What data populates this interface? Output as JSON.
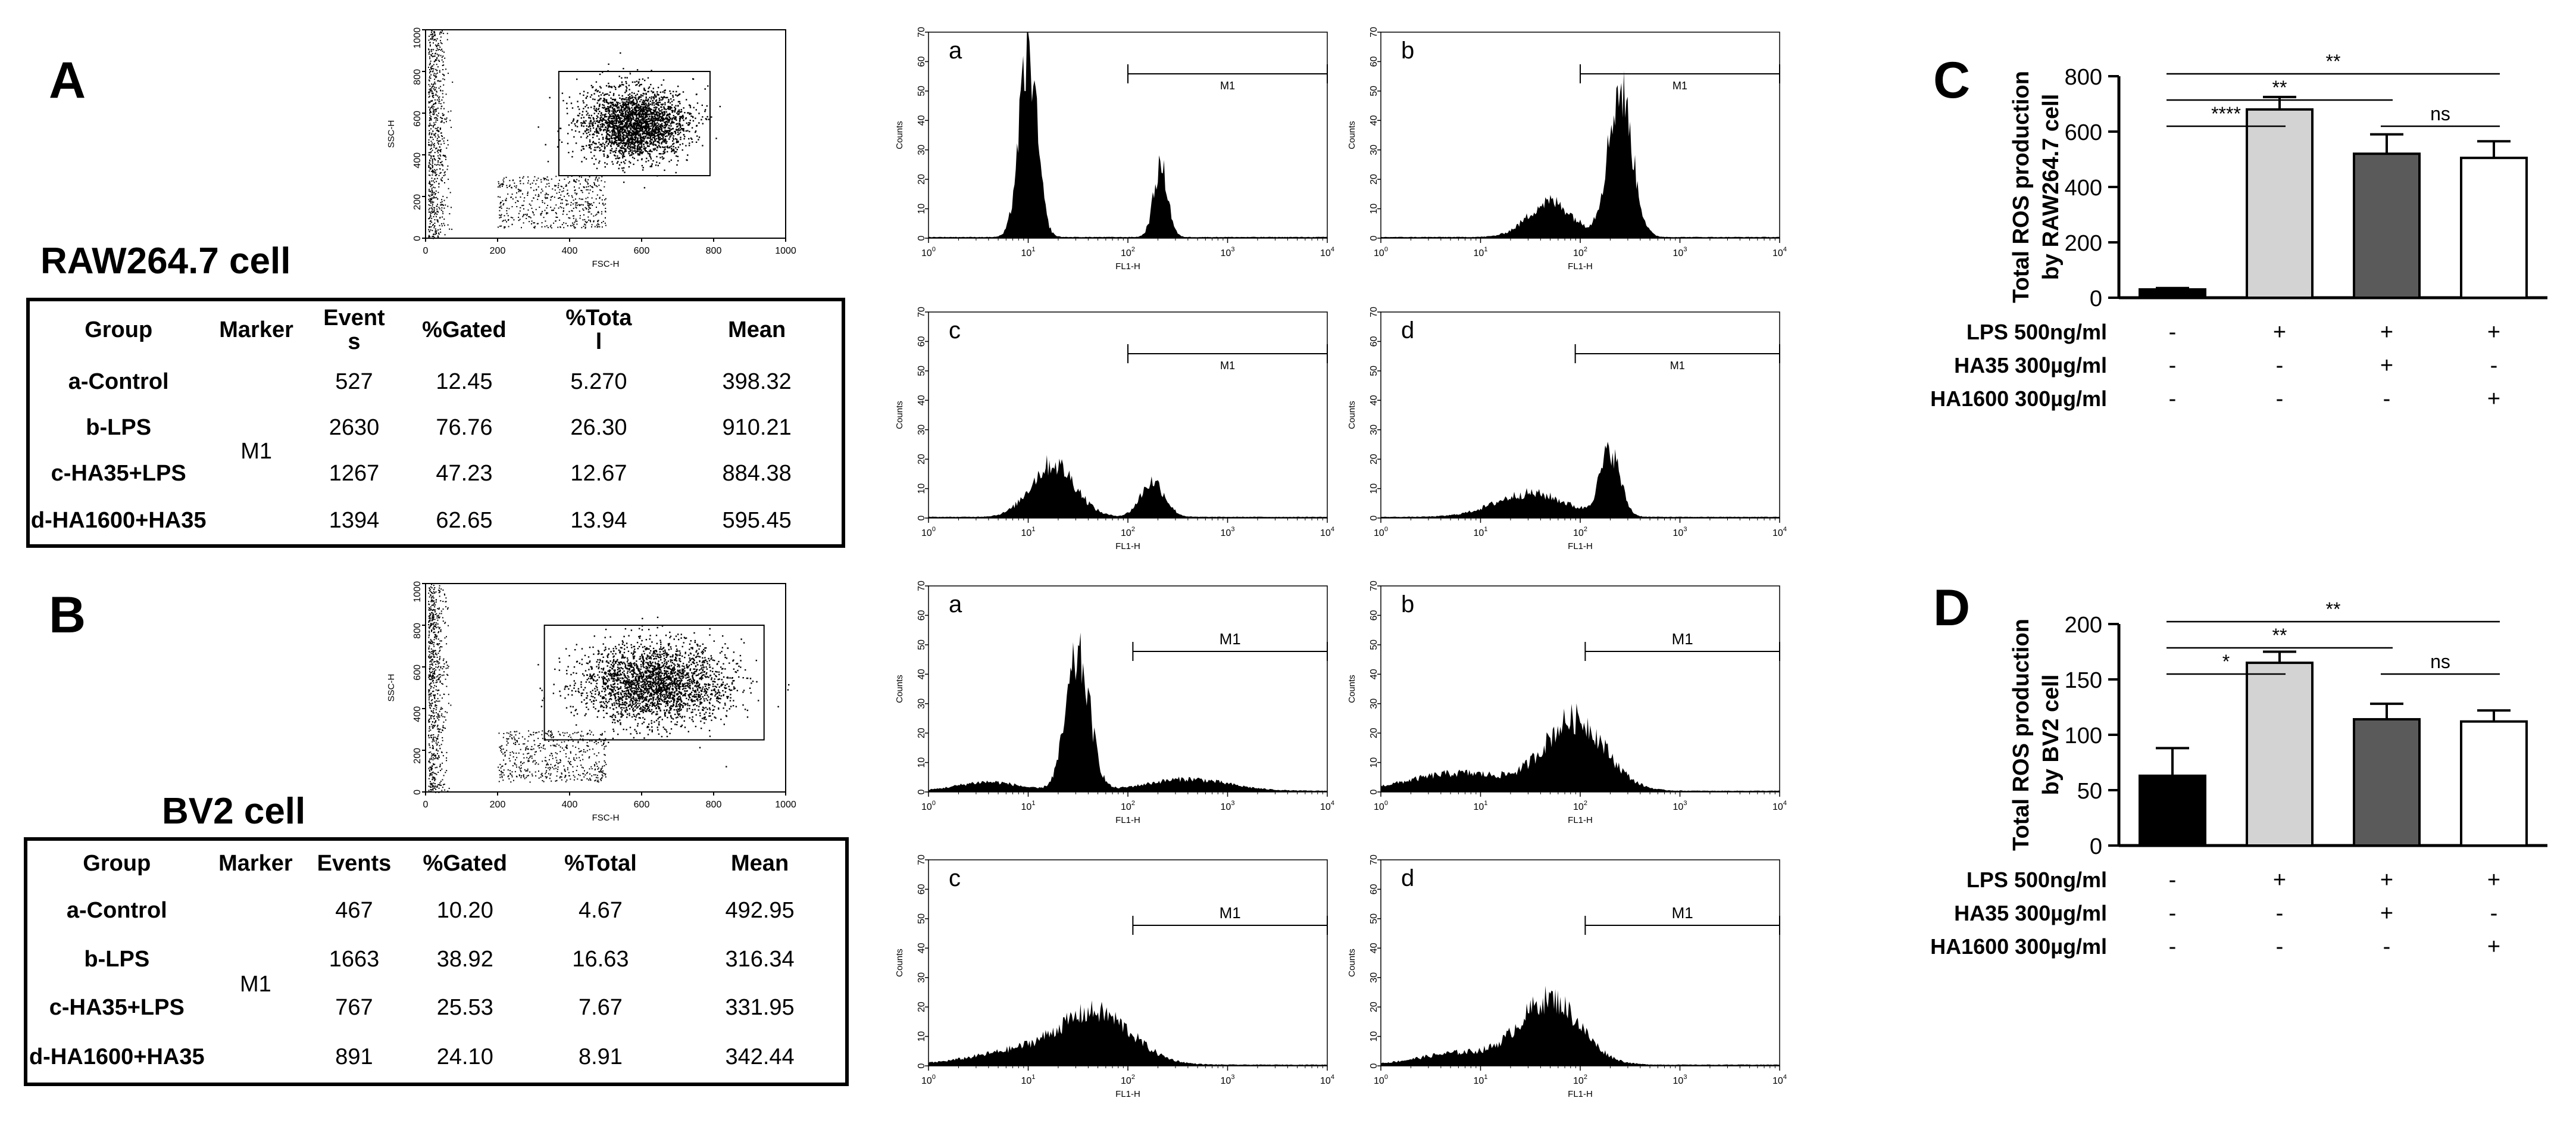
{
  "panels": {
    "A": {
      "letter": "A",
      "cell_title": "RAW264.7 cell",
      "scatter": {
        "xlabel": "FSC-H",
        "ylabel": "SSC-H",
        "xticks": [
          "0",
          "200",
          "400",
          "600",
          "800",
          "1000"
        ],
        "yticks": [
          "0",
          "200",
          "400",
          "600",
          "800",
          "1000"
        ]
      },
      "table": {
        "headers": [
          "Group",
          "Marker",
          "Events",
          "%Gated",
          "%Total",
          "Mean"
        ],
        "header_lines": [
          [
            "Group"
          ],
          [
            "Marker"
          ],
          [
            "Event",
            "s"
          ],
          [
            "%Gated"
          ],
          [
            "%Tota",
            "l"
          ],
          [
            "Mean"
          ]
        ],
        "marker": "M1",
        "rows": [
          {
            "group": "a-Control",
            "events": "527",
            "gated": "12.45",
            "total": "5.270",
            "mean": "398.32"
          },
          {
            "group": "b-LPS",
            "events": "2630",
            "gated": "76.76",
            "total": "26.30",
            "mean": "910.21"
          },
          {
            "group": "c-HA35+LPS",
            "events": "1267",
            "gated": "47.23",
            "total": "12.67",
            "mean": "884.38"
          },
          {
            "group": "d-HA1600+HA35",
            "events": "1394",
            "gated": "62.65",
            "total": "13.94",
            "mean": "595.45"
          }
        ]
      },
      "histograms": [
        {
          "label": "a",
          "gate": "M1"
        },
        {
          "label": "b",
          "gate": "M1"
        },
        {
          "label": "c",
          "gate": "M1"
        },
        {
          "label": "d",
          "gate": "M1"
        }
      ]
    },
    "B": {
      "letter": "B",
      "cell_title": "BV2 cell",
      "scatter": {
        "xlabel": "FSC-H",
        "ylabel": "SSC-H",
        "xticks": [
          "0",
          "200",
          "400",
          "600",
          "800",
          "1000"
        ],
        "yticks": [
          "0",
          "200",
          "400",
          "600",
          "800",
          "1000"
        ]
      },
      "table": {
        "headers": [
          "Group",
          "Marker",
          "Events",
          "%Gated",
          "%Total",
          "Mean"
        ],
        "header_lines": [
          [
            "Group"
          ],
          [
            "Marker"
          ],
          [
            "Events"
          ],
          [
            "%Gated"
          ],
          [
            "%Total"
          ],
          [
            "Mean"
          ]
        ],
        "marker": "M1",
        "rows": [
          {
            "group": "a-Control",
            "events": "467",
            "gated": "10.20",
            "total": "4.67",
            "mean": "492.95"
          },
          {
            "group": "b-LPS",
            "events": "1663",
            "gated": "38.92",
            "total": "16.63",
            "mean": "316.34"
          },
          {
            "group": "c-HA35+LPS",
            "events": "767",
            "gated": "25.53",
            "total": "7.67",
            "mean": "331.95"
          },
          {
            "group": "d-HA1600+HA35",
            "events": "891",
            "gated": "24.10",
            "total": "8.91",
            "mean": "342.44"
          }
        ]
      },
      "histograms": [
        {
          "label": "a",
          "gate": "M1"
        },
        {
          "label": "b",
          "gate": "M1"
        },
        {
          "label": "c",
          "gate": "M1"
        },
        {
          "label": "d",
          "gate": "M1"
        }
      ]
    }
  },
  "histogram_axes": {
    "xlabel": "FL1-H",
    "ylabel": "Counts",
    "xticks_base": "10",
    "xticks_exp": [
      "0",
      "1",
      "2",
      "3",
      "4"
    ],
    "yticks": [
      "0",
      "10",
      "20",
      "30",
      "40",
      "50",
      "60",
      "70"
    ]
  },
  "chart_data": [
    {
      "panel": "C",
      "type": "bar",
      "title": "",
      "ylabel_lines": [
        "Total ROS production",
        "by RAW264.7 cell"
      ],
      "ylim": [
        0,
        800
      ],
      "yticks": [
        0,
        200,
        400,
        600,
        800
      ],
      "values": [
        30,
        680,
        520,
        505
      ],
      "errors": [
        5,
        45,
        70,
        60
      ],
      "bar_colors": [
        "#000000",
        "#d3d3d3",
        "#5a5a5a",
        "#ffffff"
      ],
      "conditions": [
        {
          "label": "LPS 500ng/ml",
          "signs": [
            "-",
            "+",
            "+",
            "+"
          ]
        },
        {
          "label": "HA35 300µg/ml",
          "signs": [
            "-",
            "-",
            "+",
            "-"
          ]
        },
        {
          "label": "HA1600 300µg/ml",
          "signs": [
            "-",
            "-",
            "-",
            "+"
          ]
        }
      ],
      "significance": [
        {
          "from": 1,
          "to": 4,
          "text": "**"
        },
        {
          "from": 1,
          "to": 3,
          "text": "**"
        },
        {
          "from": 1,
          "to": 2,
          "text": "****"
        },
        {
          "from": 3,
          "to": 4,
          "text": "ns"
        }
      ]
    },
    {
      "panel": "D",
      "type": "bar",
      "title": "",
      "ylabel_lines": [
        "Total ROS production",
        "by BV2 cell"
      ],
      "ylim": [
        0,
        200
      ],
      "yticks": [
        0,
        50,
        100,
        150,
        200
      ],
      "values": [
        63,
        165,
        114,
        112
      ],
      "errors": [
        25,
        10,
        14,
        10
      ],
      "bar_colors": [
        "#000000",
        "#d3d3d3",
        "#5a5a5a",
        "#ffffff"
      ],
      "conditions": [
        {
          "label": "LPS 500ng/ml",
          "signs": [
            "-",
            "+",
            "+",
            "+"
          ]
        },
        {
          "label": "HA35 300µg/ml",
          "signs": [
            "-",
            "-",
            "+",
            "-"
          ]
        },
        {
          "label": "HA1600 300µg/ml",
          "signs": [
            "-",
            "-",
            "-",
            "+"
          ]
        }
      ],
      "significance": [
        {
          "from": 1,
          "to": 4,
          "text": "**"
        },
        {
          "from": 1,
          "to": 3,
          "text": "**"
        },
        {
          "from": 1,
          "to": 2,
          "text": "*"
        },
        {
          "from": 3,
          "to": 4,
          "text": "ns"
        }
      ]
    }
  ]
}
